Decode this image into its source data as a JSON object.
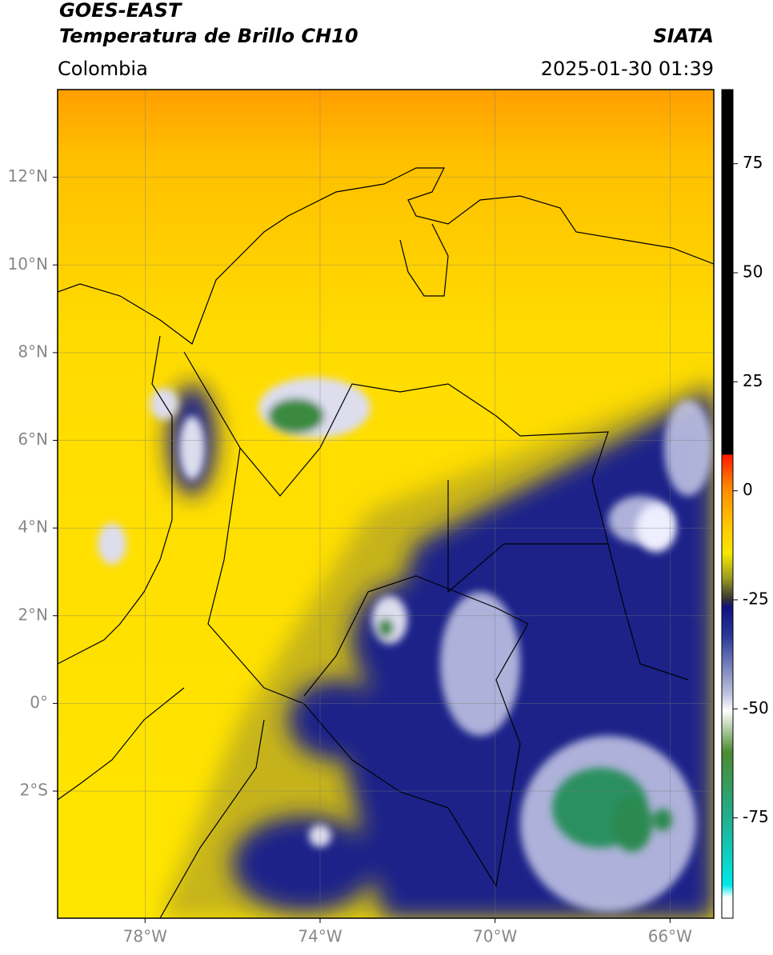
{
  "header": {
    "satellite": "GOES-EAST",
    "product": "Temperatura de Brillo CH10",
    "agency": "SIATA",
    "region": "Colombia",
    "datetime": "2025-01-30 01:39"
  },
  "map": {
    "lon_range": [
      -80,
      -65
    ],
    "lat_range": [
      -4.9,
      14
    ],
    "lat_ticks": [
      {
        "value": 12,
        "label": "12°N"
      },
      {
        "value": 10,
        "label": "10°N"
      },
      {
        "value": 8,
        "label": "8°N"
      },
      {
        "value": 6,
        "label": "6°N"
      },
      {
        "value": 4,
        "label": "4°N"
      },
      {
        "value": 2,
        "label": "2°N"
      },
      {
        "value": 0,
        "label": "0°"
      },
      {
        "value": -2,
        "label": "2°S"
      }
    ],
    "lon_ticks": [
      {
        "value": -78,
        "label": "78°W"
      },
      {
        "value": -74,
        "label": "74°W"
      },
      {
        "value": -70,
        "label": "70°W"
      },
      {
        "value": -66,
        "label": "66°W"
      }
    ]
  },
  "colorbar": {
    "range": [
      -98,
      92
    ],
    "ticks": [
      75,
      50,
      25,
      0,
      -25,
      -50,
      -75
    ]
  }
}
